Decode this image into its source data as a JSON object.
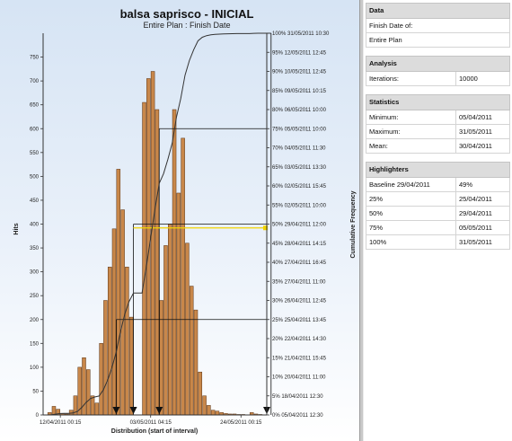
{
  "chart_data": {
    "type": "bar",
    "title": "balsa saprisco - INICIAL",
    "subtitle": "Entire Plan : Finish Date",
    "xlabel": "Distribution (start of interval)",
    "ylabel": "Hits",
    "y2label": "Cumulative Frequency",
    "ylim": [
      0,
      800
    ],
    "yticks": [
      0,
      50,
      100,
      150,
      200,
      250,
      300,
      350,
      400,
      450,
      500,
      550,
      600,
      650,
      700,
      750
    ],
    "x_tick_labels": [
      "12/04/2011 00:15",
      "03/05/2011 04:15",
      "24/05/2011 00:15"
    ],
    "x_tick_days": [
      0,
      21,
      42
    ],
    "xlim_days": [
      -4,
      48
    ],
    "values": [
      5,
      18,
      12,
      3,
      2,
      10,
      40,
      100,
      120,
      95,
      40,
      25,
      150,
      240,
      310,
      390,
      515,
      430,
      310,
      205,
      0,
      0,
      655,
      705,
      720,
      640,
      240,
      355,
      400,
      640,
      465,
      580,
      360,
      270,
      220,
      90,
      40,
      20,
      10,
      8,
      5,
      3,
      2,
      2,
      1,
      1,
      0,
      5,
      2,
      1
    ],
    "bins_start_day": -3,
    "bin_width_days": 1,
    "cumulative": {
      "percent_ticks": [
        "0%",
        "5%",
        "10%",
        "15%",
        "20%",
        "25%",
        "30%",
        "35%",
        "40%",
        "45%",
        "50%",
        "55%",
        "60%",
        "65%",
        "70%",
        "75%",
        "80%",
        "85%",
        "90%",
        "95%",
        "100%"
      ],
      "date_ticks": [
        "05/04/2011 12:30",
        "18/04/2011 12:30",
        "20/04/2011 11:00",
        "21/04/2011 15:45",
        "22/04/2011 14:30",
        "25/04/2011 13:45",
        "26/04/2011 12:45",
        "27/04/2011 11:00",
        "27/04/2011 16:45",
        "28/04/2011 14:15",
        "29/04/2011 12:00",
        "02/05/2011 10:00",
        "02/05/2011 15:45",
        "03/05/2011 13:30",
        "04/05/2011 11:30",
        "05/05/2011 10:00",
        "06/05/2011 10:00",
        "09/05/2011 10:15",
        "10/05/2011 12:45",
        "12/05/2011 12:45",
        "31/05/2011 10:30"
      ]
    },
    "highlighters": [
      {
        "percent": 25,
        "day": 13
      },
      {
        "percent": 50,
        "day": 17
      },
      {
        "percent": 75,
        "day": 23
      },
      {
        "percent": 100,
        "day": 49
      }
    ],
    "baseline_marker": {
      "day": 17,
      "percent": 49,
      "color": "#f2d400"
    },
    "marker_days": [
      13,
      17,
      23,
      49
    ],
    "bar_color": "#c8874a",
    "bar_edge": "#5a3212",
    "grid": false
  },
  "side": {
    "data": {
      "header": "Data",
      "rows": [
        "Finish Date of:",
        "Entire Plan"
      ]
    },
    "analysis": {
      "header": "Analysis",
      "label": "Iterations:",
      "value": "10000"
    },
    "statistics": {
      "header": "Statistics",
      "rows": [
        {
          "label": "Minimum:",
          "value": "05/04/2011"
        },
        {
          "label": "Maximum:",
          "value": "31/05/2011"
        },
        {
          "label": "Mean:",
          "value": "30/04/2011"
        }
      ]
    },
    "highlighters": {
      "header": "Highlighters",
      "rows": [
        {
          "label": "Baseline  29/04/2011",
          "value": "49%"
        },
        {
          "label": "25%",
          "value": "25/04/2011"
        },
        {
          "label": "50%",
          "value": "29/04/2011"
        },
        {
          "label": "75%",
          "value": "05/05/2011"
        },
        {
          "label": "100%",
          "value": "31/05/2011"
        }
      ]
    }
  }
}
